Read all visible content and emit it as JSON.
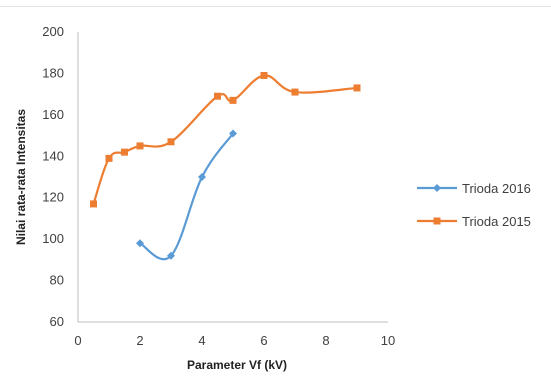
{
  "chart_data": {
    "type": "line",
    "xlabel": "Parameter Vf  (kV)",
    "ylabel": "Nilai rata-rata  Intensitas",
    "xlim": [
      0,
      10
    ],
    "ylim": [
      60,
      200
    ],
    "x_ticks": [
      0,
      2,
      4,
      6,
      8,
      10
    ],
    "y_ticks": [
      60,
      80,
      100,
      120,
      140,
      160,
      180,
      200
    ],
    "grid": false,
    "legend_position": "right",
    "smooth": true,
    "series": [
      {
        "name": "Trioda 2016",
        "color": "#5B9BD5",
        "marker": "diamond",
        "x": [
          2,
          3,
          4,
          5
        ],
        "y": [
          98,
          92,
          130,
          151
        ]
      },
      {
        "name": "Trioda 2015",
        "color": "#ED7D31",
        "marker": "square",
        "x": [
          0.5,
          1,
          1.5,
          2,
          3,
          4.5,
          5,
          6,
          7,
          9
        ],
        "y": [
          117,
          139,
          142,
          145,
          147,
          169,
          167,
          179,
          171,
          173
        ]
      }
    ]
  }
}
